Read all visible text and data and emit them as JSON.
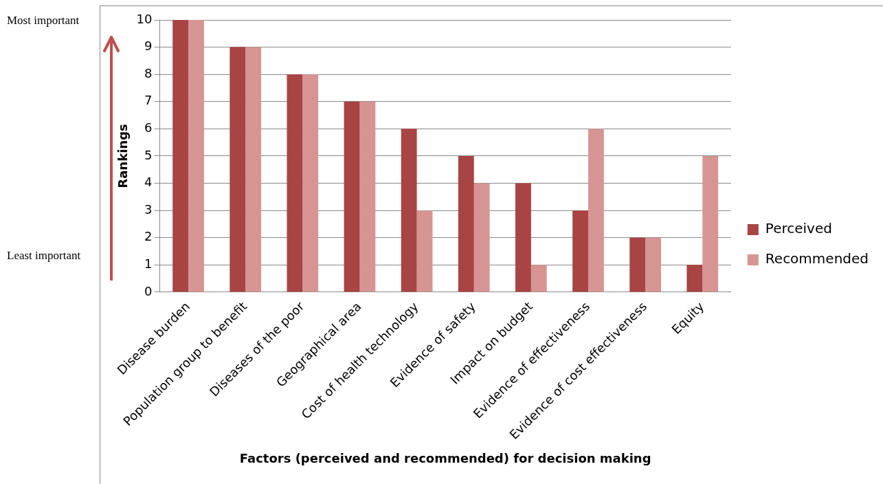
{
  "chart_data": {
    "type": "bar",
    "xlabel": "Factors (perceived and recommended) for decision making",
    "ylabel": "Rankings",
    "categories": [
      "Disease burden",
      "Population group to benefit",
      "Diseases of the poor",
      "Geographical area",
      "Cost of health technology",
      "Evidence of safety",
      "Impact on budget",
      "Evidence of effectiveness",
      "Evidence of cost effectiveness",
      "Equity"
    ],
    "series": [
      {
        "name": "Perceived",
        "color": "#a94444",
        "values": [
          10,
          9,
          8,
          7,
          6,
          5,
          4,
          3,
          2,
          1
        ]
      },
      {
        "name": "Recommended",
        "color": "#d69593",
        "values": [
          10,
          9,
          8,
          7,
          3,
          4,
          1,
          6,
          2,
          5
        ]
      }
    ],
    "ylim": [
      0,
      10
    ],
    "yticks": [
      0,
      1,
      2,
      3,
      4,
      5,
      6,
      7,
      8,
      9,
      10
    ],
    "grid": "y",
    "legend": "right",
    "annotations": [
      "Most important",
      "Least important"
    ]
  }
}
